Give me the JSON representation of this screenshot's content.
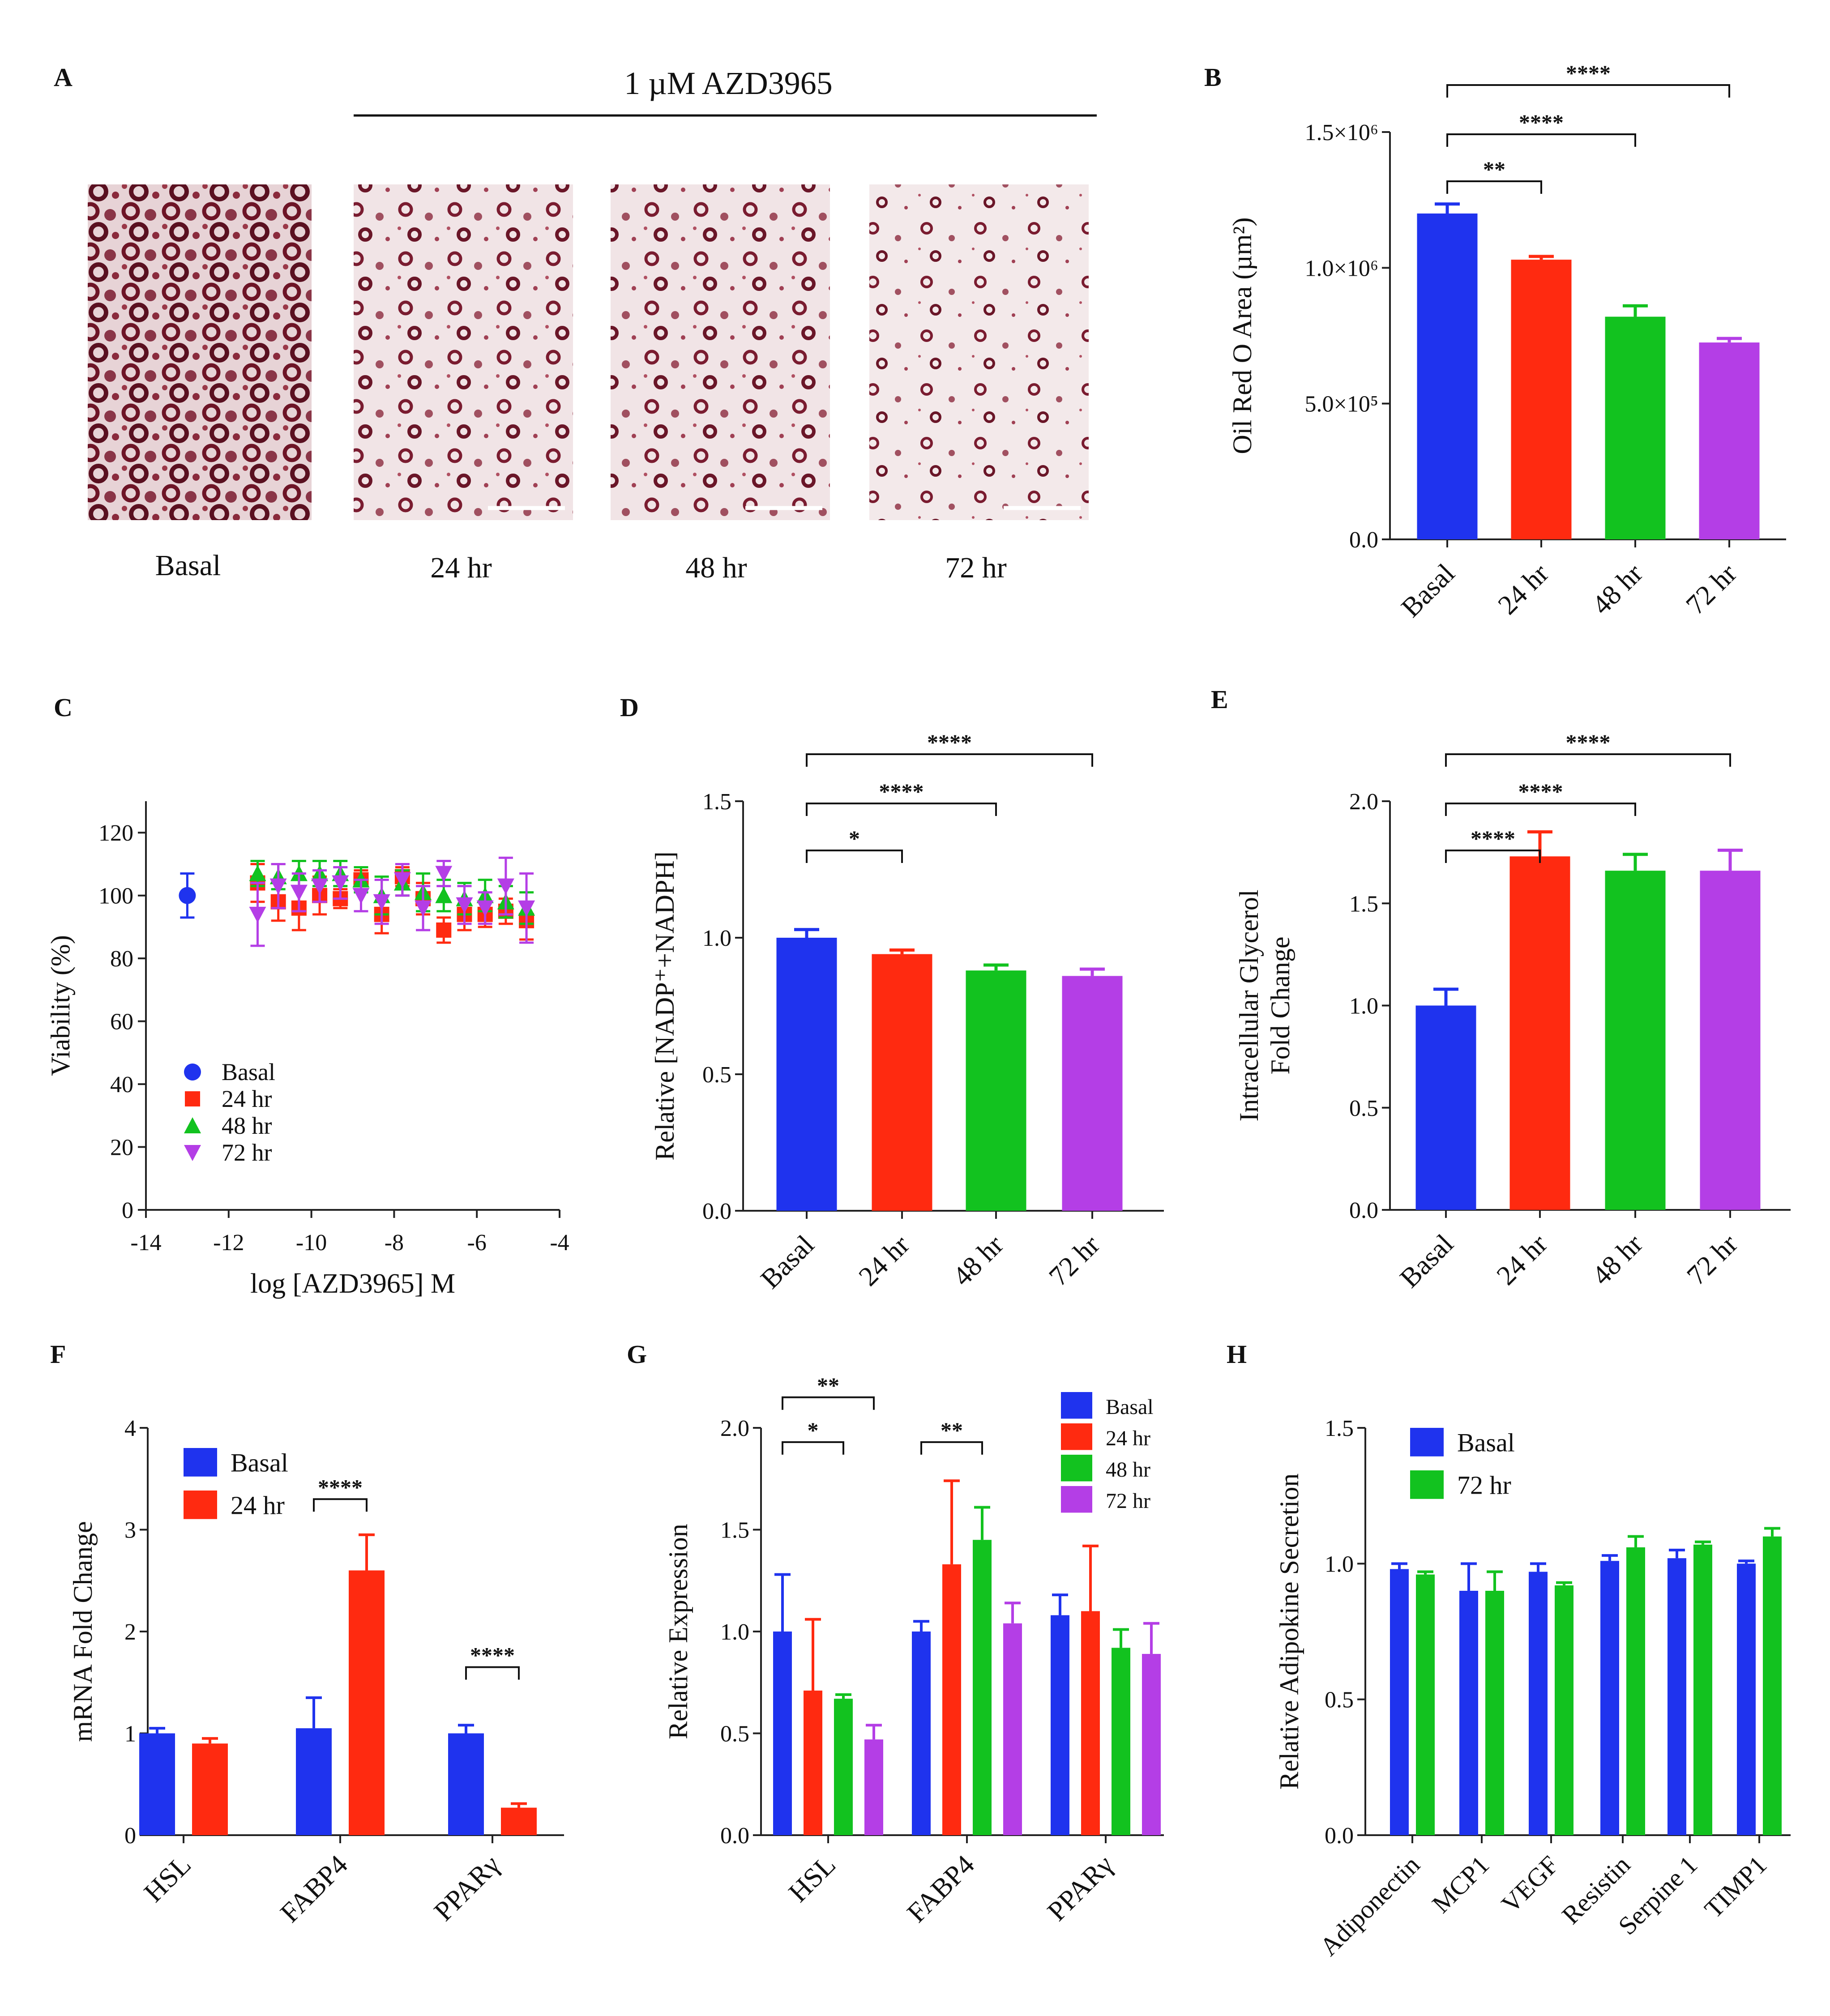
{
  "colors": {
    "basal": "#1f33ee",
    "h24": "#ff2a10",
    "h48": "#12c21f",
    "h72": "#b43ee6",
    "ink": "#111111"
  },
  "panelA": {
    "letter": "A",
    "treatment": "1 µM AZD3965",
    "captions": [
      "Basal",
      "24 hr",
      "48 hr",
      "72 hr"
    ]
  },
  "chart_data": [
    {
      "id": "B",
      "type": "bar",
      "letter": "B",
      "ylabel": "Oil Red O Area (µm²)",
      "categories": [
        "Basal",
        "24 hr",
        "48 hr",
        "72 hr"
      ],
      "values": [
        1200000,
        1030000,
        820000,
        725000
      ],
      "errors": [
        35000,
        12000,
        40000,
        15000
      ],
      "colorKeys": [
        "basal",
        "h24",
        "h48",
        "h72"
      ],
      "ylim": [
        0,
        1500000
      ],
      "yticks": [
        0,
        500000,
        1000000,
        1500000
      ],
      "yticklabels": [
        "0.0",
        "5.0×10⁵",
        "1.0×10⁶",
        "1.5×10⁶"
      ],
      "sig": [
        {
          "a": 0,
          "b": 1,
          "label": "**"
        },
        {
          "a": 0,
          "b": 2,
          "label": "****"
        },
        {
          "a": 0,
          "b": 3,
          "label": "****"
        }
      ]
    },
    {
      "id": "C",
      "type": "scatter",
      "letter": "C",
      "xlabel": "log [AZD3965] M",
      "ylabel": "Viability (%)",
      "xlim": [
        -14,
        -4
      ],
      "ylim": [
        0,
        130
      ],
      "xticks": [
        -14,
        -12,
        -10,
        -8,
        -6,
        -4
      ],
      "yticks": [
        0,
        20,
        40,
        60,
        80,
        100,
        120
      ],
      "legend": "bottom-left",
      "series": [
        {
          "name": "Basal",
          "marker": "circle",
          "colorKey": "basal",
          "x": [
            -13
          ],
          "y": [
            100
          ],
          "err": [
            7
          ]
        },
        {
          "name": "24 hr",
          "marker": "square",
          "colorKey": "h24",
          "x": [
            -11.3,
            -10.8,
            -10.3,
            -9.8,
            -9.3,
            -8.8,
            -8.3,
            -7.8,
            -7.3,
            -6.8,
            -6.3,
            -5.8,
            -5.3,
            -4.8
          ],
          "y": [
            104,
            98,
            96,
            100,
            99,
            105,
            94,
            106,
            99,
            89,
            94,
            94,
            95,
            92
          ],
          "err": [
            6,
            6,
            7,
            6,
            3,
            3,
            6,
            3,
            5,
            4,
            5,
            4,
            4,
            6
          ]
        },
        {
          "name": "48 hr",
          "marker": "triangle-up",
          "colorKey": "h48",
          "x": [
            -11.3,
            -10.8,
            -10.3,
            -9.8,
            -9.3,
            -8.8,
            -8.3,
            -7.8,
            -7.3,
            -6.8,
            -6.3,
            -5.8,
            -5.3,
            -4.8
          ],
          "y": [
            107,
            106,
            107,
            107,
            107,
            105,
            100,
            104,
            101,
            100,
            99,
            100,
            98,
            96
          ],
          "err": [
            4,
            4,
            4,
            4,
            4,
            4,
            6,
            4,
            6,
            5,
            5,
            5,
            5,
            5
          ]
        },
        {
          "name": "72 hr",
          "marker": "triangle-down",
          "colorKey": "h72",
          "x": [
            -11.3,
            -10.8,
            -10.3,
            -9.8,
            -9.3,
            -8.8,
            -8.3,
            -7.8,
            -7.3,
            -6.8,
            -6.3,
            -5.8,
            -5.3,
            -4.8
          ],
          "y": [
            94,
            103,
            101,
            103,
            104,
            100,
            98,
            105,
            96,
            107,
            97,
            96,
            103,
            96
          ],
          "err": [
            10,
            7,
            6,
            5,
            5,
            5,
            7,
            5,
            7,
            4,
            6,
            5,
            9,
            11
          ]
        }
      ]
    },
    {
      "id": "D",
      "type": "bar",
      "letter": "D",
      "ylabel": "Relative [NADP⁺+NADPH]",
      "categories": [
        "Basal",
        "24 hr",
        "48 hr",
        "72 hr"
      ],
      "values": [
        1.0,
        0.94,
        0.88,
        0.86
      ],
      "errors": [
        0.03,
        0.015,
        0.02,
        0.025
      ],
      "colorKeys": [
        "basal",
        "h24",
        "h48",
        "h72"
      ],
      "ylim": [
        0,
        1.5
      ],
      "yticks": [
        0,
        0.5,
        1.0,
        1.5
      ],
      "yticklabels": [
        "0.0",
        "0.5",
        "1.0",
        "1.5"
      ],
      "sig": [
        {
          "a": 0,
          "b": 1,
          "label": "*"
        },
        {
          "a": 0,
          "b": 2,
          "label": "****"
        },
        {
          "a": 0,
          "b": 3,
          "label": "****"
        }
      ]
    },
    {
      "id": "E",
      "type": "bar",
      "letter": "E",
      "ylabel": "Intracellular Glycerol",
      "ylabel2": "Fold Change",
      "categories": [
        "Basal",
        "24 hr",
        "48 hr",
        "72 hr"
      ],
      "values": [
        1.0,
        1.73,
        1.66,
        1.66
      ],
      "errors": [
        0.08,
        0.12,
        0.08,
        0.1
      ],
      "colorKeys": [
        "basal",
        "h24",
        "h48",
        "h72"
      ],
      "ylim": [
        0,
        2.0
      ],
      "yticks": [
        0,
        0.5,
        1.0,
        1.5,
        2.0
      ],
      "yticklabels": [
        "0.0",
        "0.5",
        "1.0",
        "1.5",
        "2.0"
      ],
      "sig": [
        {
          "a": 0,
          "b": 1,
          "label": "****"
        },
        {
          "a": 0,
          "b": 2,
          "label": "****"
        },
        {
          "a": 0,
          "b": 3,
          "label": "****"
        }
      ]
    },
    {
      "id": "F",
      "type": "grouped-bar",
      "letter": "F",
      "ylabel": "mRNA Fold Change",
      "categories": [
        "HSL",
        "FABP4",
        "PPARγ"
      ],
      "series": [
        {
          "name": "Basal",
          "colorKey": "basal",
          "values": [
            1.0,
            1.05,
            1.0
          ],
          "errors": [
            0.05,
            0.3,
            0.08
          ]
        },
        {
          "name": "24 hr",
          "colorKey": "h24",
          "values": [
            0.9,
            2.6,
            0.27
          ],
          "errors": [
            0.05,
            0.35,
            0.04
          ]
        }
      ],
      "ylim": [
        0,
        4
      ],
      "yticks": [
        0,
        1,
        2,
        3,
        4
      ],
      "yticklabels": [
        "0",
        "1",
        "2",
        "3",
        "4"
      ],
      "legend": "top-left",
      "sig": [
        {
          "g": 1,
          "a": 0,
          "b": 1,
          "label": "****",
          "y": 3.3
        },
        {
          "g": 2,
          "a": 0,
          "b": 1,
          "label": "****",
          "y": 1.65
        }
      ]
    },
    {
      "id": "G",
      "type": "grouped-bar",
      "letter": "G",
      "ylabel": "Relative Expression",
      "categories": [
        "HSL",
        "FABP4",
        "PPARγ"
      ],
      "series": [
        {
          "name": "Basal",
          "colorKey": "basal",
          "values": [
            1.0,
            1.0,
            1.08
          ],
          "errors": [
            0.28,
            0.05,
            0.1
          ]
        },
        {
          "name": "24 hr",
          "colorKey": "h24",
          "values": [
            0.71,
            1.33,
            1.1
          ],
          "errors": [
            0.35,
            0.41,
            0.32
          ]
        },
        {
          "name": "48 hr",
          "colorKey": "h48",
          "values": [
            0.67,
            1.45,
            0.92
          ],
          "errors": [
            0.02,
            0.16,
            0.09
          ]
        },
        {
          "name": "72 hr",
          "colorKey": "h72",
          "values": [
            0.47,
            1.04,
            0.89
          ],
          "errors": [
            0.07,
            0.1,
            0.15
          ]
        }
      ],
      "ylim": [
        0,
        2.0
      ],
      "yticks": [
        0,
        0.5,
        1.0,
        1.5,
        2.0
      ],
      "yticklabels": [
        "0.0",
        "0.5",
        "1.0",
        "1.5",
        "2.0"
      ],
      "legend": "top-right",
      "sig": [
        {
          "g": 0,
          "a": 0,
          "b": 2,
          "label": "*",
          "y": 1.93
        },
        {
          "g": 0,
          "a": 0,
          "b": 3,
          "label": "**",
          "y": 2.15
        },
        {
          "g": 1,
          "a": 0,
          "b": 2,
          "label": "**",
          "y": 1.93
        }
      ]
    },
    {
      "id": "H",
      "type": "grouped-bar",
      "letter": "H",
      "ylabel": "Relative Adipokine Secretion",
      "categories": [
        "Adiponectin",
        "MCP1",
        "VEGF",
        "Resistin",
        "Serpine 1",
        "TIMP1"
      ],
      "series": [
        {
          "name": "Basal",
          "colorKey": "basal",
          "values": [
            0.98,
            0.9,
            0.97,
            1.01,
            1.02,
            1.0
          ],
          "errors": [
            0.02,
            0.1,
            0.03,
            0.02,
            0.03,
            0.01
          ]
        },
        {
          "name": "72 hr",
          "colorKey": "h48",
          "values": [
            0.96,
            0.9,
            0.92,
            1.06,
            1.07,
            1.1
          ],
          "errors": [
            0.01,
            0.07,
            0.01,
            0.04,
            0.01,
            0.03
          ]
        }
      ],
      "ylim": [
        0,
        1.5
      ],
      "yticks": [
        0,
        0.5,
        1.0,
        1.5
      ],
      "yticklabels": [
        "0.0",
        "0.5",
        "1.0",
        "1.5"
      ],
      "legend": "top-left",
      "sig": []
    }
  ]
}
